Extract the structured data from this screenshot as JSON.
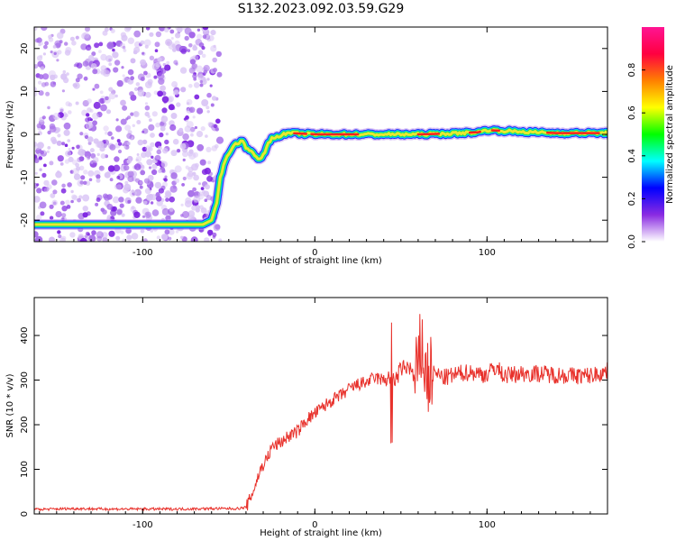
{
  "title": "S132.2023.092.03.59.G29",
  "chart_data": [
    {
      "type": "heatmap",
      "xlabel": "Height of straight line (km)",
      "ylabel": "Frequency (Hz)",
      "xlim": [
        -163,
        170
      ],
      "ylim": [
        -25,
        25
      ],
      "xticks": [
        -100,
        0,
        100
      ],
      "yticks": [
        -20,
        -10,
        0,
        10,
        20
      ],
      "colorbar": {
        "label": "Normalized spectral amplitude",
        "range": [
          0,
          1
        ],
        "ticks": [
          0.0,
          0.2,
          0.4,
          0.6,
          0.8
        ],
        "colors": [
          "#ffffff",
          "#8a2be2",
          "#0000ff",
          "#00ffff",
          "#00ff00",
          "#ffff00",
          "#ff8000",
          "#ff0040",
          "#ff1493"
        ]
      },
      "ridge": {
        "x": [
          -163,
          -120,
          -100,
          -80,
          -65,
          -60,
          -57,
          -55,
          -52,
          -48,
          -45,
          -42,
          -40,
          -38,
          -35,
          -32,
          -29,
          -27,
          -25,
          -22,
          -18,
          -15,
          -10,
          0,
          20,
          40,
          60,
          80,
          95,
          100,
          110,
          125,
          140,
          170
        ],
        "y": [
          -21,
          -21,
          -21,
          -21,
          -21,
          -20,
          -16,
          -10,
          -6,
          -3,
          -2,
          -1.5,
          -3,
          -3.5,
          -5,
          -6,
          -4,
          -2,
          -1,
          -0.5,
          0,
          0.3,
          0.2,
          0,
          0,
          0,
          0,
          0.2,
          0.5,
          1,
          0.8,
          0.5,
          0.3,
          0.3
        ]
      }
    },
    {
      "type": "line",
      "xlabel": "Height of straight line (km)",
      "ylabel": "SNR (10 * v/v)",
      "xlim": [
        -163,
        170
      ],
      "ylim": [
        0,
        485
      ],
      "xticks": [
        -100,
        0,
        100
      ],
      "yticks": [
        0,
        100,
        200,
        300,
        400
      ],
      "color": "#e8312b",
      "x": [
        -163,
        -140,
        -120,
        -100,
        -80,
        -60,
        -50,
        -45,
        -40,
        -38,
        -35,
        -32,
        -30,
        -27,
        -25,
        -20,
        -15,
        -10,
        -5,
        0,
        5,
        10,
        15,
        20,
        25,
        30,
        35,
        40,
        45,
        47,
        50,
        55,
        58,
        60,
        62,
        64,
        65,
        67,
        70,
        75,
        80,
        85,
        90,
        100,
        105,
        110,
        120,
        130,
        140,
        150,
        160,
        170
      ],
      "y": [
        10,
        12,
        11,
        11,
        11,
        12,
        12,
        12,
        15,
        30,
        60,
        95,
        110,
        130,
        150,
        160,
        175,
        185,
        210,
        225,
        240,
        255,
        265,
        280,
        290,
        295,
        305,
        300,
        310,
        300,
        325,
        330,
        300,
        310,
        390,
        320,
        305,
        310,
        315,
        305,
        310,
        315,
        318,
        312,
        330,
        310,
        315,
        315,
        312,
        310,
        310,
        320
      ]
    }
  ]
}
